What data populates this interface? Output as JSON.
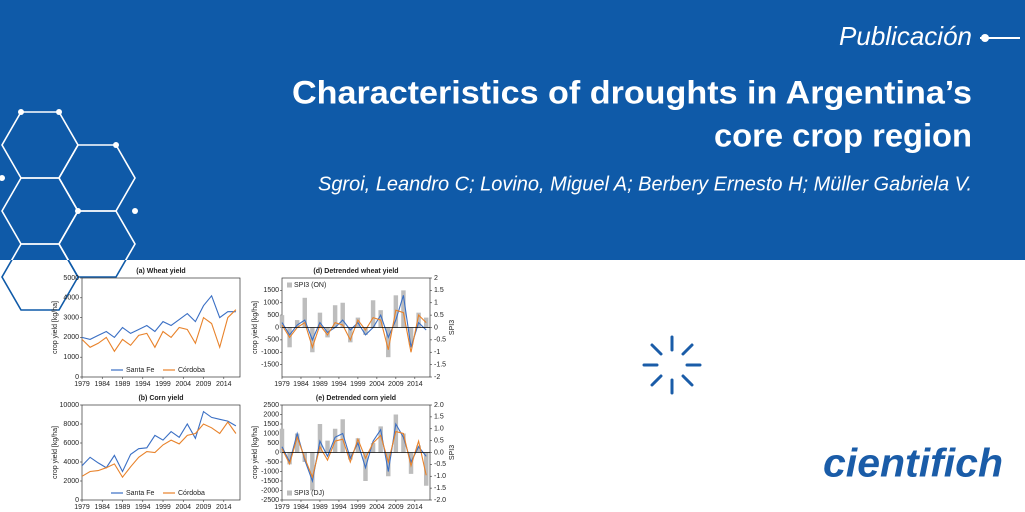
{
  "header": {
    "tag": "Publicación",
    "title_lines": [
      "Characteristics of droughts in Argentina’s",
      "core crop region"
    ],
    "authors": "Sgroi, Leandro C; Lovino, Miguel A; Berbery Ernesto H; Müller Gabriela V."
  },
  "logo": "cientifich",
  "chart_data": [
    {
      "type": "line",
      "title": "(a) Wheat yield",
      "ylabel": "crop yield [kg/ha]",
      "x": [
        1979,
        1981,
        1983,
        1985,
        1987,
        1989,
        1991,
        1993,
        1995,
        1997,
        1999,
        2001,
        2003,
        2005,
        2007,
        2009,
        2011,
        2013,
        2015,
        2017
      ],
      "xlim": [
        1979,
        2018
      ],
      "xticks": [
        1979,
        1984,
        1989,
        1994,
        1999,
        2004,
        2009,
        2014
      ],
      "ylim": [
        0,
        5000
      ],
      "yticks": [
        0,
        1000,
        2000,
        3000,
        4000,
        5000
      ],
      "legend": "lower center",
      "series": [
        {
          "name": "Santa Fe",
          "color": "#3a6fc4",
          "values": [
            2000,
            1900,
            2100,
            2300,
            2000,
            2500,
            2200,
            2400,
            2600,
            2300,
            2800,
            2600,
            2900,
            3200,
            2800,
            3600,
            4100,
            3000,
            3300,
            3300
          ]
        },
        {
          "name": "Córdoba",
          "color": "#e8822a",
          "values": [
            1900,
            1500,
            1700,
            2000,
            1300,
            1900,
            1600,
            2100,
            2200,
            1500,
            2300,
            2000,
            2500,
            2400,
            1700,
            3000,
            2700,
            1500,
            3000,
            3400
          ]
        }
      ]
    },
    {
      "type": "line",
      "title": "(b) Corn yield",
      "ylabel": "crop yield [kg/ha]",
      "x": [
        1979,
        1981,
        1983,
        1985,
        1987,
        1989,
        1991,
        1993,
        1995,
        1997,
        1999,
        2001,
        2003,
        2005,
        2007,
        2009,
        2011,
        2013,
        2015,
        2017
      ],
      "xlim": [
        1979,
        2018
      ],
      "xticks": [
        1979,
        1984,
        1989,
        1994,
        1999,
        2004,
        2009,
        2014
      ],
      "ylim": [
        0,
        10000
      ],
      "yticks": [
        0,
        2000,
        4000,
        6000,
        8000,
        10000
      ],
      "legend": "lower center",
      "series": [
        {
          "name": "Santa Fe",
          "color": "#3a6fc4",
          "values": [
            3600,
            4500,
            3900,
            3400,
            4700,
            3000,
            4800,
            5400,
            5500,
            6800,
            6300,
            7200,
            6600,
            8000,
            6500,
            9300,
            8700,
            8500,
            8300,
            7800
          ]
        },
        {
          "name": "Córdoba",
          "color": "#e8822a",
          "values": [
            2500,
            3000,
            3100,
            3400,
            3800,
            2400,
            3500,
            4500,
            5100,
            5000,
            5800,
            6300,
            5900,
            6800,
            7000,
            8000,
            7600,
            7000,
            8200,
            7000
          ]
        }
      ]
    },
    {
      "type": "line",
      "title": "(d) Detrended wheat yield",
      "ylabel": "crop yield [kg/ha]",
      "y2label": "SPI3",
      "x": [
        1979,
        1981,
        1983,
        1985,
        1987,
        1989,
        1991,
        1993,
        1995,
        1997,
        1999,
        2001,
        2003,
        2005,
        2007,
        2009,
        2011,
        2013,
        2015,
        2017
      ],
      "xlim": [
        1979,
        2018
      ],
      "xticks": [
        1979,
        1984,
        1989,
        1994,
        1999,
        2004,
        2009,
        2014
      ],
      "ylim": [
        -2000,
        2000
      ],
      "yticks": [
        -1500,
        -1000,
        -500,
        0,
        500,
        1000,
        1500
      ],
      "y2lim": [
        -2,
        2
      ],
      "y2ticks": [
        -2,
        -1.5,
        -1,
        -0.5,
        0,
        0.5,
        1,
        1.5,
        2
      ],
      "legend": "upper left",
      "series": [
        {
          "name": "SPI3 (ON)",
          "type": "bar",
          "axis": "y2",
          "color": "#bdbdbd",
          "values": [
            0.5,
            -0.8,
            0.3,
            1.2,
            -1.0,
            0.6,
            -0.4,
            0.9,
            1.0,
            -0.6,
            0.4,
            -0.3,
            1.1,
            0.7,
            -1.2,
            1.3,
            1.5,
            -0.7,
            0.6,
            0.4
          ]
        },
        {
          "color": "#3a6fc4",
          "values": [
            200,
            -300,
            100,
            300,
            -500,
            200,
            -200,
            0,
            300,
            -100,
            200,
            -300,
            0,
            500,
            -400,
            300,
            1300,
            -800,
            200,
            -100
          ]
        },
        {
          "color": "#e8822a",
          "values": [
            100,
            -400,
            0,
            200,
            -800,
            100,
            -300,
            200,
            100,
            -500,
            300,
            -100,
            400,
            300,
            -900,
            700,
            600,
            -1000,
            500,
            200
          ]
        }
      ]
    },
    {
      "type": "line",
      "title": "(e) Detrended corn yield",
      "ylabel": "crop yield [kg/ha]",
      "y2label": "SPI3",
      "x": [
        1979,
        1981,
        1983,
        1985,
        1987,
        1989,
        1991,
        1993,
        1995,
        1997,
        1999,
        2001,
        2003,
        2005,
        2007,
        2009,
        2011,
        2013,
        2015,
        2017
      ],
      "xlim": [
        1979,
        2018
      ],
      "xticks": [
        1979,
        1984,
        1989,
        1994,
        1999,
        2004,
        2009,
        2014
      ],
      "ylim": [
        -2500,
        2500
      ],
      "yticks": [
        -2500,
        -2000,
        -1500,
        -1000,
        -500,
        0,
        500,
        1000,
        1500,
        2000,
        2500
      ],
      "y2lim": [
        -2,
        2
      ],
      "y2ticks": [
        {
          "value": -2,
          "label": "-2.0"
        },
        {
          "value": -1.5,
          "label": "-1.5"
        },
        {
          "value": -1,
          "label": "-1.0"
        },
        {
          "value": -0.5,
          "label": "-0.5"
        },
        {
          "value": 0,
          "label": "0.0"
        },
        {
          "value": 0.5,
          "label": "0.5"
        },
        {
          "value": 1,
          "label": "1.0"
        },
        {
          "value": 1.5,
          "label": "1.5"
        },
        {
          "value": 2,
          "label": "2.0"
        }
      ],
      "legend": "lower left",
      "series": [
        {
          "name": "SPI3 (DJ)",
          "type": "bar",
          "axis": "y2",
          "color": "#bdbdbd",
          "values": [
            1.0,
            -0.5,
            0.8,
            -0.4,
            -1.6,
            1.2,
            0.5,
            1.0,
            1.4,
            -0.3,
            0.6,
            -1.2,
            0.4,
            1.1,
            -1.0,
            1.6,
            0.8,
            -0.9,
            0.3,
            -1.4
          ]
        },
        {
          "color": "#3a6fc4",
          "values": [
            300,
            -500,
            1000,
            -400,
            -1500,
            600,
            -200,
            800,
            1000,
            -300,
            500,
            -800,
            600,
            1200,
            -1000,
            1500,
            800,
            -500,
            300,
            -200
          ]
        },
        {
          "color": "#e8822a",
          "values": [
            200,
            -600,
            800,
            -300,
            -1300,
            300,
            -400,
            600,
            700,
            -500,
            700,
            -300,
            500,
            900,
            -500,
            1100,
            1000,
            -700,
            600,
            -1200
          ]
        }
      ]
    }
  ]
}
